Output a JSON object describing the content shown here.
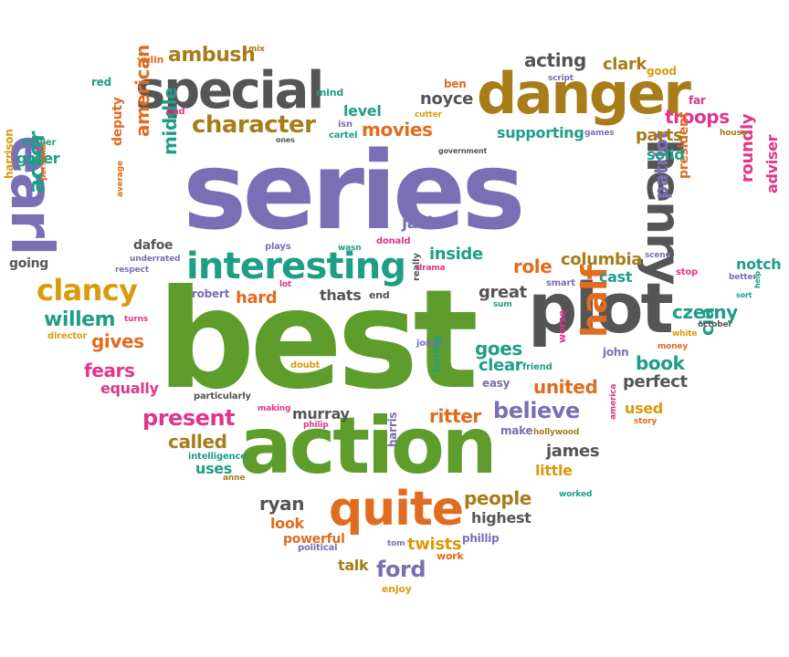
{
  "colors": {
    "purple": "#7a6fb5",
    "green": "#5e9c2c",
    "gray": "#555555",
    "gold": "#a77d1a",
    "orange": "#e06c1f",
    "pink": "#e0368a",
    "teal": "#1f9e86",
    "yellow": "#d99b0d"
  },
  "words": [
    {
      "text": "series",
      "color": "purple"
    },
    {
      "text": "best",
      "color": "green"
    },
    {
      "text": "action",
      "color": "green"
    },
    {
      "text": "plot",
      "color": "gray"
    },
    {
      "text": "danger",
      "color": "gold"
    },
    {
      "text": "special",
      "color": "gray"
    },
    {
      "text": "earl",
      "color": "purple"
    },
    {
      "text": "henry",
      "color": "gray"
    },
    {
      "text": "quite",
      "color": "orange"
    },
    {
      "text": "interesting",
      "color": "teal"
    },
    {
      "text": "half",
      "color": "orange"
    },
    {
      "text": "clancy",
      "color": "yellow"
    },
    {
      "text": "character",
      "color": "gold"
    },
    {
      "text": "ambush",
      "color": "gold"
    },
    {
      "text": "acting",
      "color": "gray"
    },
    {
      "text": "troops",
      "color": "pink"
    },
    {
      "text": "movies",
      "color": "orange"
    },
    {
      "text": "american",
      "color": "orange"
    },
    {
      "text": "middle",
      "color": "teal"
    },
    {
      "text": "actor",
      "color": "teal"
    },
    {
      "text": "willem",
      "color": "teal"
    },
    {
      "text": "gives",
      "color": "orange"
    },
    {
      "text": "fears",
      "color": "pink"
    },
    {
      "text": "equally",
      "color": "pink"
    },
    {
      "text": "present",
      "color": "pink"
    },
    {
      "text": "called",
      "color": "gold"
    },
    {
      "text": "uses",
      "color": "teal"
    },
    {
      "text": "ryan",
      "color": "gray"
    },
    {
      "text": "look",
      "color": "orange"
    },
    {
      "text": "powerful",
      "color": "orange"
    },
    {
      "text": "talk",
      "color": "gold"
    },
    {
      "text": "ford",
      "color": "purple"
    },
    {
      "text": "twists",
      "color": "yellow"
    },
    {
      "text": "people",
      "color": "gold"
    },
    {
      "text": "highest",
      "color": "gray"
    },
    {
      "text": "james",
      "color": "gray"
    },
    {
      "text": "believe",
      "color": "purple"
    },
    {
      "text": "ritter",
      "color": "orange"
    },
    {
      "text": "united",
      "color": "orange"
    },
    {
      "text": "clear",
      "color": "teal"
    },
    {
      "text": "goes",
      "color": "teal"
    },
    {
      "text": "book",
      "color": "teal"
    },
    {
      "text": "perfect",
      "color": "gray"
    },
    {
      "text": "used",
      "color": "yellow"
    },
    {
      "text": "czerny",
      "color": "teal"
    },
    {
      "text": "cia",
      "color": "teal"
    },
    {
      "text": "role",
      "color": "orange"
    },
    {
      "text": "columbia",
      "color": "gold"
    },
    {
      "text": "cast",
      "color": "teal"
    },
    {
      "text": "patriot",
      "color": "purple"
    },
    {
      "text": "president",
      "color": "orange"
    },
    {
      "text": "roundly",
      "color": "pink"
    },
    {
      "text": "adviser",
      "color": "pink"
    },
    {
      "text": "notch",
      "color": "teal"
    },
    {
      "text": "solid",
      "color": "teal"
    },
    {
      "text": "parts",
      "color": "gold"
    },
    {
      "text": "supporting",
      "color": "teal"
    },
    {
      "text": "noyce",
      "color": "gray"
    },
    {
      "text": "level",
      "color": "teal"
    },
    {
      "text": "clark",
      "color": "gold"
    },
    {
      "text": "jack",
      "color": "purple"
    },
    {
      "text": "inside",
      "color": "teal"
    },
    {
      "text": "great",
      "color": "gray"
    },
    {
      "text": "thats",
      "color": "gray"
    },
    {
      "text": "hard",
      "color": "orange"
    },
    {
      "text": "robert",
      "color": "purple"
    },
    {
      "text": "murray",
      "color": "gray"
    },
    {
      "text": "dafoe",
      "color": "gray"
    },
    {
      "text": "deputy",
      "color": "orange"
    },
    {
      "text": "greer",
      "color": "teal"
    },
    {
      "text": "harrison",
      "color": "yellow"
    },
    {
      "text": "going",
      "color": "gray"
    },
    {
      "text": "little",
      "color": "yellow"
    },
    {
      "text": "phillip",
      "color": "purple"
    },
    {
      "text": "enjoy",
      "color": "yellow"
    },
    {
      "text": "work",
      "color": "orange"
    },
    {
      "text": "political",
      "color": "purple"
    },
    {
      "text": "tom",
      "color": "purple"
    },
    {
      "text": "anne",
      "color": "gold"
    },
    {
      "text": "intelligence",
      "color": "teal"
    },
    {
      "text": "harris",
      "color": "purple"
    },
    {
      "text": "make",
      "color": "purple"
    },
    {
      "text": "hollywood",
      "color": "gold"
    },
    {
      "text": "worked",
      "color": "teal"
    },
    {
      "text": "america",
      "color": "pink"
    },
    {
      "text": "story",
      "color": "orange"
    },
    {
      "text": "money",
      "color": "orange"
    },
    {
      "text": "john",
      "color": "purple"
    },
    {
      "text": "worse",
      "color": "pink"
    },
    {
      "text": "easy",
      "color": "purple"
    },
    {
      "text": "friend",
      "color": "teal"
    },
    {
      "text": "sum",
      "color": "teal"
    },
    {
      "text": "smart",
      "color": "purple"
    },
    {
      "text": "jones",
      "color": "purple"
    },
    {
      "text": "turning",
      "color": "teal"
    },
    {
      "text": "doubt",
      "color": "yellow"
    },
    {
      "text": "particularly",
      "color": "gray"
    },
    {
      "text": "making",
      "color": "pink"
    },
    {
      "text": "philip",
      "color": "pink"
    },
    {
      "text": "director",
      "color": "yellow"
    },
    {
      "text": "turns",
      "color": "pink"
    },
    {
      "text": "respect",
      "color": "purple"
    },
    {
      "text": "underrated",
      "color": "purple"
    },
    {
      "text": "average",
      "color": "orange"
    },
    {
      "text": "personal",
      "color": "orange"
    },
    {
      "text": "thriller",
      "color": "teal"
    },
    {
      "text": "plays",
      "color": "purple"
    },
    {
      "text": "wasn",
      "color": "teal"
    },
    {
      "text": "donald",
      "color": "pink"
    },
    {
      "text": "lot",
      "color": "pink"
    },
    {
      "text": "end",
      "color": "gray"
    },
    {
      "text": "really",
      "color": "gray"
    },
    {
      "text": "drama",
      "color": "pink"
    },
    {
      "text": "ones",
      "color": "gray"
    },
    {
      "text": "isn",
      "color": "purple"
    },
    {
      "text": "cartel",
      "color": "teal"
    },
    {
      "text": "cutter",
      "color": "yellow"
    },
    {
      "text": "government",
      "color": "gray"
    },
    {
      "text": "games",
      "color": "purple"
    },
    {
      "text": "script",
      "color": "purple"
    },
    {
      "text": "ben",
      "color": "orange"
    },
    {
      "text": "good",
      "color": "yellow"
    },
    {
      "text": "far",
      "color": "pink"
    },
    {
      "text": "house",
      "color": "gold"
    },
    {
      "text": "yulin",
      "color": "orange"
    },
    {
      "text": "mix",
      "color": "gold"
    },
    {
      "text": "red",
      "color": "teal"
    },
    {
      "text": "bad",
      "color": "pink"
    },
    {
      "text": "mind",
      "color": "teal"
    },
    {
      "text": "scene",
      "color": "purple"
    },
    {
      "text": "stop",
      "color": "pink"
    },
    {
      "text": "better",
      "color": "purple"
    },
    {
      "text": "sort",
      "color": "teal"
    },
    {
      "text": "help",
      "color": "teal"
    },
    {
      "text": "october",
      "color": "gray"
    },
    {
      "text": "white",
      "color": "yellow"
    }
  ]
}
